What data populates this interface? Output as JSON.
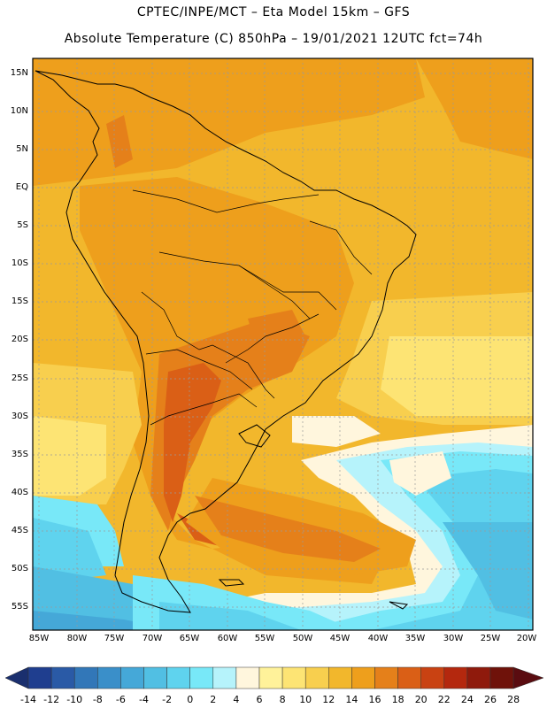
{
  "title_line1": "CPTEC/INPE/MCT –  Eta Model 15km – GFS",
  "title_line2": "Absolute Temperature (C) 850hPa – 19/01/2021 12UTC fct=74h",
  "lat_labels": [
    "15N",
    "10N",
    "5N",
    "EQ",
    "5S",
    "10S",
    "15S",
    "20S",
    "25S",
    "30S",
    "35S",
    "40S",
    "45S",
    "50S",
    "55S"
  ],
  "lon_labels": [
    "85W",
    "80W",
    "75W",
    "70W",
    "65W",
    "60W",
    "55W",
    "50W",
    "45W",
    "40W",
    "35W",
    "30W",
    "25W",
    "20W"
  ],
  "colorbar": {
    "labels": [
      "-14",
      "-12",
      "-10",
      "-8",
      "-6",
      "-4",
      "-2",
      "0",
      "2",
      "4",
      "6",
      "8",
      "10",
      "12",
      "14",
      "16",
      "18",
      "20",
      "22",
      "24",
      "26",
      "28"
    ],
    "colors": [
      "#1f3e8f",
      "#2a5aa6",
      "#3277b8",
      "#3a8fc9",
      "#45a8d8",
      "#51bfe3",
      "#5fd3ee",
      "#78e8f8",
      "#b6f3fb",
      "#fff6dd",
      "#fff29a",
      "#fde474",
      "#f8cf4e",
      "#f2b72c",
      "#ee9f1c",
      "#e5801a",
      "#da5f16",
      "#c94212",
      "#b4280e",
      "#8f1a0c",
      "#6f120a"
    ],
    "left_arrow_color": "#1a2f6e",
    "right_arrow_color": "#5a0c10"
  }
}
